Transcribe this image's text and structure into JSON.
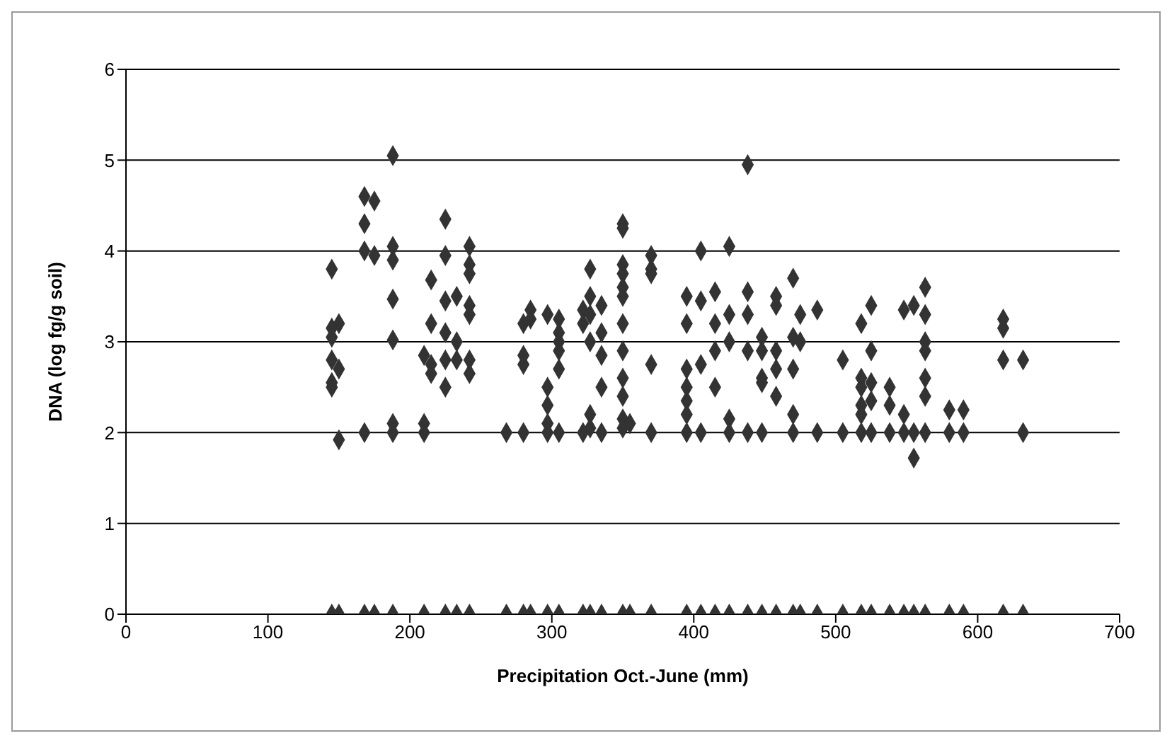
{
  "chart_data": {
    "type": "scatter",
    "xlabel": "Precipitation Oct.-June (mm)",
    "ylabel": "DNA (log fg/g soil)",
    "x": [
      145,
      145,
      145,
      145,
      145,
      145,
      145,
      150,
      150,
      150,
      150,
      168,
      168,
      168,
      168,
      168,
      175,
      175,
      175,
      188,
      188,
      188,
      188,
      188,
      188,
      188,
      188,
      210,
      210,
      210,
      210,
      215,
      215,
      215,
      215,
      225,
      225,
      225,
      225,
      225,
      225,
      225,
      233,
      233,
      233,
      233,
      242,
      242,
      242,
      242,
      242,
      242,
      242,
      242,
      268,
      268,
      280,
      280,
      280,
      280,
      280,
      285,
      285,
      285,
      297,
      297,
      297,
      297,
      297,
      297,
      305,
      305,
      305,
      305,
      305,
      305,
      305,
      322,
      322,
      322,
      322,
      327,
      327,
      327,
      327,
      327,
      327,
      327,
      335,
      335,
      335,
      335,
      335,
      335,
      350,
      350,
      350,
      350,
      350,
      350,
      350,
      350,
      350,
      350,
      350,
      350,
      350,
      355,
      355,
      370,
      370,
      370,
      370,
      370,
      370,
      395,
      395,
      395,
      395,
      395,
      395,
      395,
      395,
      405,
      405,
      405,
      405,
      405,
      415,
      415,
      415,
      415,
      415,
      425,
      425,
      425,
      425,
      425,
      425,
      438,
      438,
      438,
      438,
      438,
      438,
      448,
      448,
      448,
      448,
      448,
      448,
      458,
      458,
      458,
      458,
      458,
      458,
      470,
      470,
      470,
      470,
      470,
      470,
      475,
      475,
      475,
      487,
      487,
      487,
      505,
      505,
      505,
      518,
      518,
      518,
      518,
      518,
      518,
      518,
      525,
      525,
      525,
      525,
      525,
      525,
      538,
      538,
      538,
      538,
      548,
      548,
      548,
      548,
      555,
      555,
      555,
      555,
      563,
      563,
      563,
      563,
      563,
      563,
      563,
      563,
      580,
      580,
      580,
      590,
      590,
      590,
      618,
      618,
      618,
      618,
      632,
      632,
      632
    ],
    "values": [
      3.8,
      3.15,
      3.05,
      2.8,
      2.5,
      2.55,
      0,
      3.2,
      2.7,
      1.92,
      0,
      4.6,
      4.3,
      4.0,
      2.0,
      0,
      4.55,
      3.95,
      0,
      5.05,
      4.05,
      3.9,
      3.47,
      3.02,
      2.1,
      2.0,
      0,
      2.1,
      2.0,
      2.85,
      0,
      3.68,
      2.75,
      2.65,
      3.2,
      4.35,
      3.95,
      3.45,
      3.1,
      2.8,
      2.5,
      0,
      3.5,
      3.0,
      2.8,
      0,
      4.05,
      3.85,
      3.75,
      3.4,
      3.3,
      2.8,
      2.65,
      0,
      2.0,
      0,
      3.2,
      2.85,
      2.75,
      2.0,
      0,
      3.35,
      3.25,
      0,
      3.3,
      2.5,
      2.3,
      2.1,
      2.0,
      0,
      3.25,
      3.1,
      3.0,
      2.9,
      2.7,
      2.0,
      0,
      3.35,
      3.2,
      2.0,
      0,
      3.8,
      3.5,
      3.3,
      3.0,
      2.2,
      2.05,
      0,
      3.4,
      3.1,
      2.85,
      2.5,
      2.0,
      0,
      4.3,
      4.25,
      3.85,
      3.75,
      3.6,
      3.5,
      3.2,
      2.9,
      2.6,
      2.4,
      2.15,
      2.05,
      0,
      2.1,
      0,
      3.95,
      3.8,
      3.75,
      2.75,
      2.0,
      0,
      3.5,
      3.2,
      2.7,
      2.5,
      2.35,
      2.2,
      2.0,
      0,
      4.0,
      3.45,
      2.75,
      2.0,
      0,
      3.55,
      3.2,
      2.9,
      2.5,
      0,
      4.05,
      3.3,
      3.0,
      2.15,
      2.0,
      0,
      4.95,
      3.55,
      3.3,
      2.9,
      2.0,
      0,
      3.05,
      2.9,
      2.6,
      2.55,
      2.0,
      0,
      3.5,
      3.4,
      2.9,
      2.7,
      2.4,
      0,
      3.7,
      3.05,
      2.7,
      2.2,
      2.0,
      0,
      3.3,
      3.0,
      0,
      3.35,
      2.0,
      0,
      2.8,
      2.0,
      0,
      3.2,
      2.6,
      2.5,
      2.3,
      2.2,
      2.0,
      0,
      3.4,
      2.9,
      2.55,
      2.35,
      2.0,
      0,
      2.5,
      2.3,
      2.0,
      0,
      3.35,
      2.2,
      2.0,
      0,
      3.4,
      1.72,
      2.0,
      0,
      3.6,
      3.3,
      3.0,
      2.9,
      2.6,
      2.4,
      2.0,
      0,
      2.25,
      2.0,
      0,
      2.25,
      2.0,
      0,
      3.25,
      3.15,
      2.8,
      0,
      2.8,
      2.0,
      0
    ],
    "color": "#333333",
    "marker": "diamond",
    "grid": "y",
    "legend": false,
    "xlim": [
      0,
      700
    ],
    "xticks": [
      0,
      100,
      200,
      300,
      400,
      500,
      600,
      700
    ],
    "ylim": [
      0,
      6
    ],
    "yticks": [
      0,
      1,
      2,
      3,
      4,
      5,
      6
    ]
  }
}
